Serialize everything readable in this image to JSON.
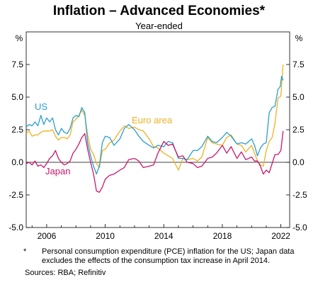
{
  "title": "Inflation – Advanced Economies*",
  "subtitle": "Year-ended",
  "footnote": {
    "marker": "*",
    "text": "Personal consumption expenditure (PCE) inflation for the US; Japan data excludes the effects of the consumption tax increase in April 2014."
  },
  "sources": "Sources: RBA; Refinitiv",
  "colors": {
    "US": "#2a9fd0",
    "Euro area": "#f0b021",
    "Japan": "#c8186b",
    "zero_line": "#000000",
    "frame": "#000000"
  },
  "chart_data": {
    "type": "line",
    "title": "Inflation – Advanced Economies*",
    "subtitle": "Year-ended",
    "y_unit_label": "%",
    "xlim": [
      2004.6,
      2022.6
    ],
    "ylim": [
      -5.0,
      10.0
    ],
    "x_ticks": [
      2006,
      2010,
      2014,
      2018,
      2022
    ],
    "y_ticks": [
      -5.0,
      -2.5,
      0.0,
      2.5,
      5.0,
      7.5
    ],
    "y_tick_labels": [
      "-5.0",
      "-2.5",
      "0.0",
      "2.5",
      "5.0",
      "7.5"
    ],
    "x_tick_labels": [
      "2006",
      "2010",
      "2014",
      "2018",
      "2022"
    ],
    "grid": false,
    "legend": "inline labels",
    "series": [
      {
        "name": "US",
        "x": [
          2004.6,
          2004.8,
          2005.0,
          2005.2,
          2005.4,
          2005.6,
          2005.8,
          2006.0,
          2006.2,
          2006.4,
          2006.6,
          2006.8,
          2007.0,
          2007.2,
          2007.4,
          2007.6,
          2007.8,
          2008.0,
          2008.2,
          2008.4,
          2008.6,
          2008.8,
          2009.0,
          2009.2,
          2009.4,
          2009.6,
          2009.8,
          2010.0,
          2010.3,
          2010.6,
          2011.0,
          2011.3,
          2011.6,
          2012.0,
          2012.3,
          2012.6,
          2013.0,
          2013.3,
          2013.6,
          2014.0,
          2014.3,
          2014.6,
          2015.0,
          2015.3,
          2015.6,
          2016.0,
          2016.3,
          2016.6,
          2017.0,
          2017.3,
          2017.6,
          2018.0,
          2018.3,
          2018.6,
          2019.0,
          2019.3,
          2019.6,
          2020.0,
          2020.2,
          2020.4,
          2020.6,
          2020.8,
          2021.0,
          2021.2,
          2021.4,
          2021.6,
          2021.8,
          2021.95,
          2022.05,
          2022.15
        ],
        "values": [
          2.7,
          2.9,
          2.8,
          3.1,
          2.8,
          3.6,
          2.9,
          3.4,
          3.1,
          3.4,
          2.5,
          2.1,
          2.6,
          2.3,
          2.2,
          2.6,
          3.4,
          3.6,
          3.5,
          4.2,
          3.8,
          1.5,
          0.5,
          -0.3,
          -0.9,
          -0.3,
          1.5,
          2.0,
          1.9,
          1.3,
          1.8,
          2.6,
          2.9,
          2.5,
          2.0,
          1.6,
          1.3,
          1.1,
          1.3,
          1.2,
          1.6,
          1.5,
          0.3,
          0.3,
          0.2,
          0.9,
          0.9,
          1.2,
          2.0,
          1.6,
          1.5,
          1.9,
          2.3,
          2.0,
          1.4,
          1.5,
          1.4,
          1.8,
          1.3,
          0.5,
          1.1,
          1.4,
          1.5,
          3.8,
          4.2,
          4.3,
          5.6,
          5.8,
          6.6,
          6.3
        ]
      },
      {
        "name": "Euro area",
        "x": [
          2004.6,
          2004.8,
          2005.0,
          2005.2,
          2005.4,
          2005.6,
          2005.8,
          2006.0,
          2006.2,
          2006.4,
          2006.6,
          2006.8,
          2007.0,
          2007.2,
          2007.4,
          2007.6,
          2007.8,
          2008.0,
          2008.2,
          2008.4,
          2008.6,
          2008.8,
          2009.0,
          2009.2,
          2009.4,
          2009.6,
          2009.8,
          2010.0,
          2010.3,
          2010.6,
          2011.0,
          2011.3,
          2011.6,
          2012.0,
          2012.3,
          2012.6,
          2013.0,
          2013.3,
          2013.6,
          2014.0,
          2014.3,
          2014.6,
          2015.0,
          2015.3,
          2015.6,
          2016.0,
          2016.3,
          2016.6,
          2017.0,
          2017.3,
          2017.6,
          2018.0,
          2018.3,
          2018.6,
          2019.0,
          2019.3,
          2019.6,
          2020.0,
          2020.2,
          2020.4,
          2020.6,
          2020.8,
          2021.0,
          2021.2,
          2021.4,
          2021.6,
          2021.8,
          2022.0,
          2022.15
        ],
        "values": [
          2.2,
          2.4,
          2.0,
          2.1,
          2.1,
          2.3,
          2.4,
          2.4,
          2.4,
          2.5,
          2.0,
          1.7,
          1.9,
          1.9,
          1.8,
          2.1,
          3.1,
          3.3,
          3.6,
          4.0,
          3.6,
          2.1,
          1.0,
          0.6,
          -0.1,
          -0.4,
          0.9,
          1.0,
          1.5,
          1.7,
          2.4,
          2.8,
          2.6,
          2.7,
          2.5,
          2.4,
          1.8,
          1.2,
          1.1,
          0.7,
          0.5,
          0.3,
          -0.6,
          0.3,
          0.2,
          0.3,
          0.1,
          0.4,
          1.9,
          1.5,
          1.4,
          1.3,
          1.9,
          2.1,
          1.4,
          1.3,
          0.8,
          1.3,
          0.7,
          0.1,
          -0.2,
          -0.3,
          0.9,
          1.6,
          1.9,
          3.0,
          4.9,
          5.1,
          7.5
        ]
      },
      {
        "name": "Japan",
        "x": [
          2004.6,
          2004.8,
          2005.0,
          2005.2,
          2005.4,
          2005.6,
          2005.8,
          2006.0,
          2006.2,
          2006.4,
          2006.6,
          2006.8,
          2007.0,
          2007.2,
          2007.4,
          2007.6,
          2007.8,
          2008.0,
          2008.2,
          2008.4,
          2008.6,
          2008.8,
          2009.0,
          2009.2,
          2009.4,
          2009.6,
          2009.8,
          2010.0,
          2010.3,
          2010.6,
          2011.0,
          2011.3,
          2011.6,
          2012.0,
          2012.3,
          2012.6,
          2013.0,
          2013.3,
          2013.6,
          2014.0,
          2014.3,
          2014.6,
          2015.0,
          2015.3,
          2015.6,
          2016.0,
          2016.3,
          2016.6,
          2017.0,
          2017.3,
          2017.6,
          2018.0,
          2018.3,
          2018.6,
          2019.0,
          2019.3,
          2019.6,
          2020.0,
          2020.2,
          2020.4,
          2020.6,
          2020.8,
          2021.0,
          2021.2,
          2021.4,
          2021.6,
          2021.8,
          2022.0,
          2022.15
        ],
        "values": [
          -0.1,
          0.0,
          -0.2,
          0.1,
          -0.3,
          -0.2,
          -0.4,
          -0.1,
          0.3,
          0.5,
          0.9,
          0.3,
          0.0,
          -0.2,
          -0.1,
          0.1,
          0.7,
          1.0,
          1.4,
          1.9,
          2.2,
          1.0,
          0.0,
          -0.9,
          -2.2,
          -2.3,
          -1.9,
          -1.3,
          -1.0,
          -0.9,
          -0.6,
          -0.4,
          0.2,
          0.3,
          0.1,
          -0.4,
          -0.3,
          -0.2,
          0.7,
          1.6,
          1.3,
          1.4,
          0.4,
          0.5,
          0.0,
          -0.1,
          -0.4,
          -0.3,
          0.3,
          0.4,
          0.7,
          1.3,
          0.7,
          1.2,
          0.3,
          0.8,
          0.2,
          0.4,
          0.1,
          0.1,
          -0.3,
          -0.9,
          -0.6,
          -0.8,
          -0.1,
          0.6,
          0.6,
          0.9,
          2.4
        ]
      }
    ],
    "annotations": [
      "US",
      "Euro area",
      "Japan"
    ]
  }
}
